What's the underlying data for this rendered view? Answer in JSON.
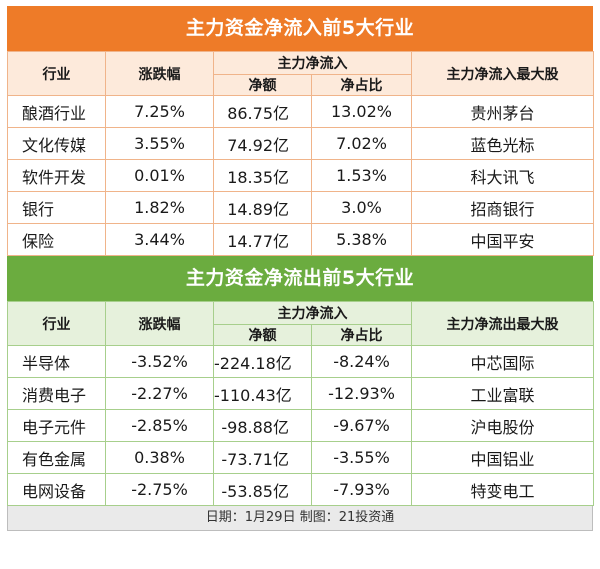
{
  "colors": {
    "inflow_banner": "#ee7b28",
    "outflow_banner": "#6bac3f",
    "inflow_header_bg": "#fdeadb",
    "outflow_header_bg": "#e6f1dc"
  },
  "inflow": {
    "title": "主力资金净流入前5大行业",
    "headers": {
      "industry": "行业",
      "change": "涨跌幅",
      "flow_group": "主力净流入",
      "net": "净额",
      "ratio": "净占比",
      "top_stock": "主力净流入最大股"
    },
    "rows": [
      {
        "industry": "酿酒行业",
        "change": "7.25%",
        "net": "86.75亿",
        "ratio": "13.02%",
        "stock": "贵州茅台"
      },
      {
        "industry": "文化传媒",
        "change": "3.55%",
        "net": "74.92亿",
        "ratio": "7.02%",
        "stock": "蓝色光标"
      },
      {
        "industry": "软件开发",
        "change": "0.01%",
        "net": "18.35亿",
        "ratio": "1.53%",
        "stock": "科大讯飞"
      },
      {
        "industry": "银行",
        "change": "1.82%",
        "net": "14.89亿",
        "ratio": "3.0%",
        "stock": "招商银行"
      },
      {
        "industry": "保险",
        "change": "3.44%",
        "net": "14.77亿",
        "ratio": "5.38%",
        "stock": "中国平安"
      }
    ]
  },
  "outflow": {
    "title": "主力资金净流出前5大行业",
    "headers": {
      "industry": "行业",
      "change": "涨跌幅",
      "flow_group": "主力净流入",
      "net": "净额",
      "ratio": "净占比",
      "top_stock": "主力净流出最大股"
    },
    "rows": [
      {
        "industry": "半导体",
        "change": "-3.52%",
        "net": "-224.18亿",
        "ratio": "-8.24%",
        "stock": "中芯国际"
      },
      {
        "industry": "消费电子",
        "change": "-2.27%",
        "net": "-110.43亿",
        "ratio": "-12.93%",
        "stock": "工业富联"
      },
      {
        "industry": "电子元件",
        "change": "-2.85%",
        "net": "-98.88亿",
        "ratio": "-9.67%",
        "stock": "沪电股份"
      },
      {
        "industry": "有色金属",
        "change": "0.38%",
        "net": "-73.71亿",
        "ratio": "-3.55%",
        "stock": "中国铝业"
      },
      {
        "industry": "电网设备",
        "change": "-2.75%",
        "net": "-53.85亿",
        "ratio": "-7.93%",
        "stock": "特变电工"
      }
    ]
  },
  "footer": "日期：1月29日 制图：21投资通"
}
